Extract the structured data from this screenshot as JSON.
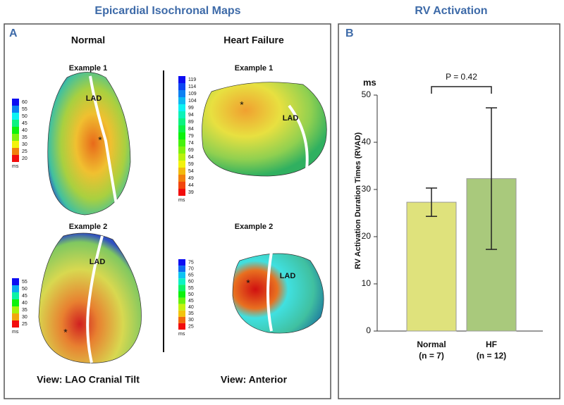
{
  "panel_a": {
    "title": "Epicardial Isochronal Maps",
    "label": "A",
    "columns": [
      {
        "heading": "Normal",
        "view": "View: LAO Cranial Tilt",
        "examples": [
          {
            "title": "Example 1",
            "lad": "LAD",
            "colorbar": [
              60,
              55,
              50,
              45,
              40,
              35,
              30,
              25,
              20
            ],
            "unit": "ms"
          },
          {
            "title": "Example 2",
            "lad": "LAD",
            "colorbar": [
              55,
              50,
              45,
              40,
              35,
              30,
              25
            ],
            "unit": "ms"
          }
        ]
      },
      {
        "heading": "Heart Failure",
        "view": "View: Anterior",
        "examples": [
          {
            "title": "Example 1",
            "lad": "LAD",
            "colorbar": [
              119,
              114,
              109,
              104,
              99,
              94,
              89,
              84,
              79,
              74,
              69,
              64,
              59,
              54,
              49,
              44,
              39
            ],
            "unit": "ms"
          },
          {
            "title": "Example 2",
            "lad": "LAD",
            "colorbar": [
              75,
              70,
              65,
              60,
              55,
              50,
              45,
              40,
              35,
              30,
              25
            ],
            "unit": "ms"
          }
        ]
      }
    ]
  },
  "chart_data": {
    "type": "bar",
    "title": "RV Activation",
    "panel_label": "B",
    "y_label": "RV Activation Duration Times (RVAD)",
    "y_unit": "ms",
    "categories": [
      "Normal",
      "HF"
    ],
    "sample_sizes": [
      "(n = 7)",
      "(n = 12)"
    ],
    "values": [
      27.3,
      32.3
    ],
    "errors": [
      3.0,
      15.0
    ],
    "colors": [
      "#dfe27c",
      "#a9c97c"
    ],
    "ylim": [
      0,
      50
    ],
    "yticks": [
      0,
      10,
      20,
      30,
      40,
      50
    ],
    "annotation": "P = 0.42"
  }
}
